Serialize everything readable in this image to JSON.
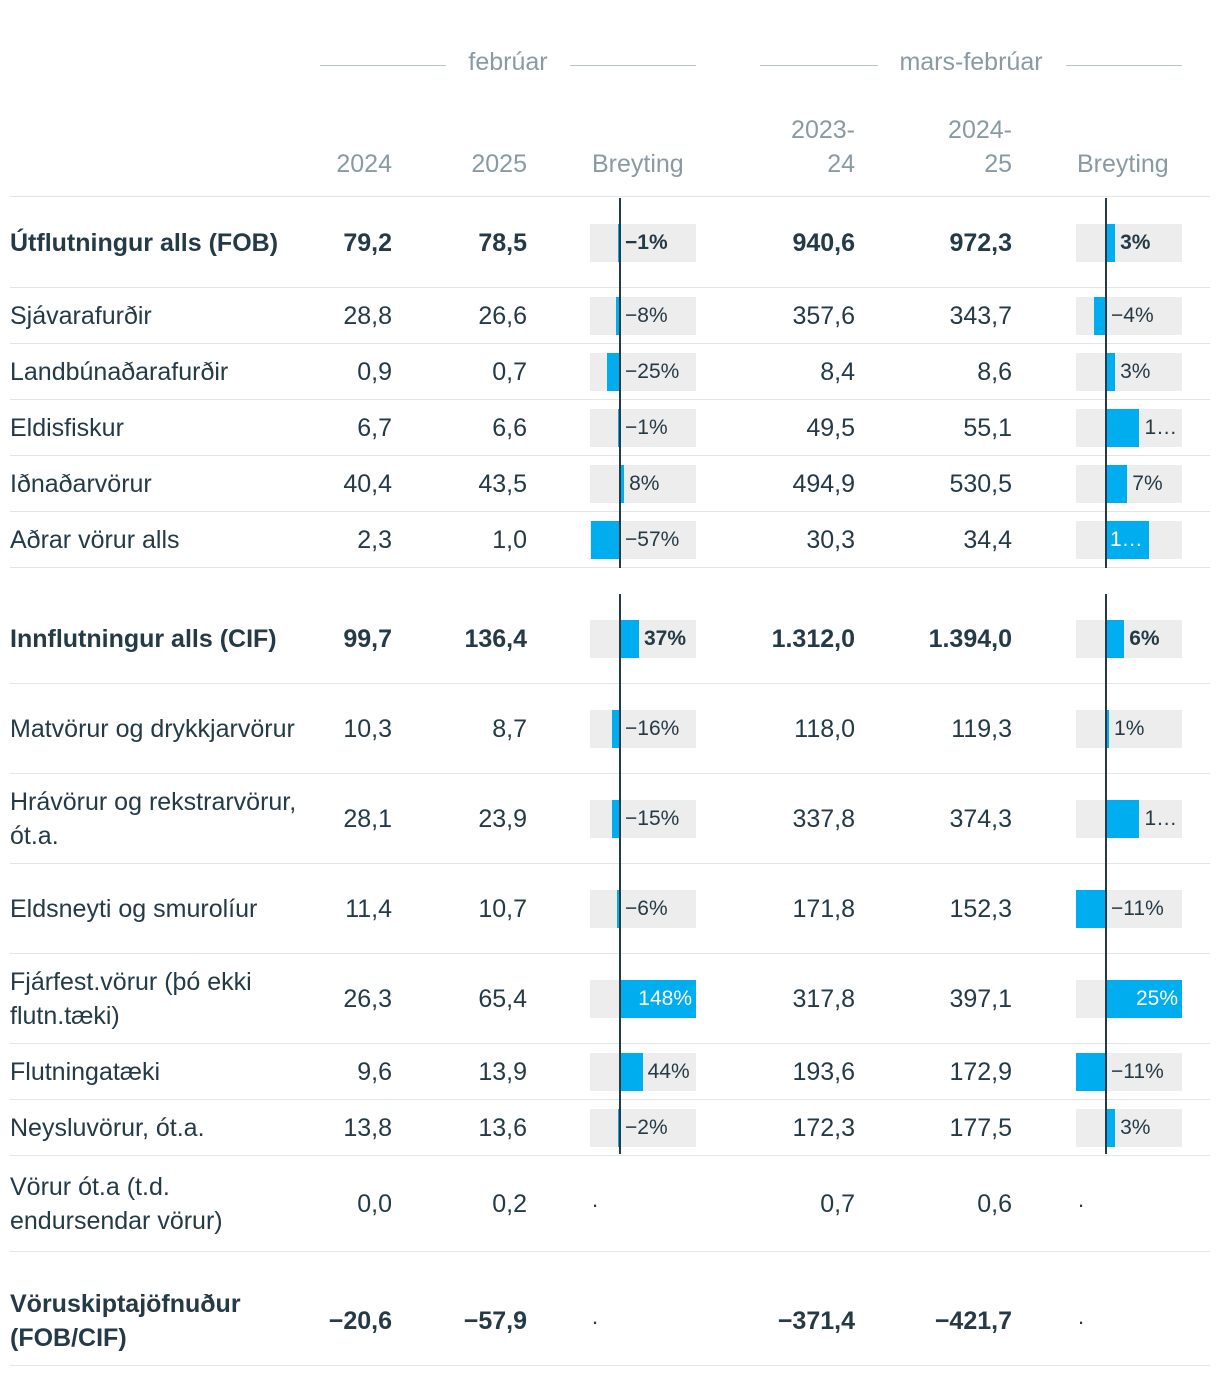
{
  "headers": {
    "group1": "febrúar",
    "group2": "mars-febrúar",
    "col_2024": "2024",
    "col_2025": "2025",
    "col_change1": "Breyting",
    "col_2023_24": "2023-\n24",
    "col_2024_25": "2024-\n25",
    "col_change2": "Breyting"
  },
  "colors": {
    "bar": "#00aeef",
    "track": "#ededed",
    "text": "#243a46",
    "muted": "#8a9aa2"
  },
  "chart_data": {
    "type": "table",
    "columns": [
      "",
      "2024",
      "2025",
      "Breyting",
      "2023-24",
      "2024-25",
      "Breyting"
    ],
    "rows": [
      {
        "label": "Útflutningur alls (FOB)",
        "bold": true,
        "v2024": "79,2",
        "v2025": "78,5",
        "ch1": -1,
        "ch1_text": "−1%",
        "v2324": "940,6",
        "v2425": "972,3",
        "ch2": 3,
        "ch2_text": "3%"
      },
      {
        "label": "Sjávarafurðir",
        "v2024": "28,8",
        "v2025": "26,6",
        "ch1": -8,
        "ch1_text": "−8%",
        "v2324": "357,6",
        "v2425": "343,7",
        "ch2": -4,
        "ch2_text": "−4%"
      },
      {
        "label": "Landbúnaðarafurðir",
        "v2024": "0,9",
        "v2025": "0,7",
        "ch1": -25,
        "ch1_text": "−25%",
        "v2324": "8,4",
        "v2425": "8,6",
        "ch2": 3,
        "ch2_text": "3%"
      },
      {
        "label": "Eldisfiskur",
        "v2024": "6,7",
        "v2025": "6,6",
        "ch1": -1,
        "ch1_text": "−1%",
        "v2324": "49,5",
        "v2425": "55,1",
        "ch2": 11,
        "ch2_text": "1…"
      },
      {
        "label": "Iðnaðarvörur",
        "v2024": "40,4",
        "v2025": "43,5",
        "ch1": 8,
        "ch1_text": "8%",
        "v2324": "494,9",
        "v2425": "530,5",
        "ch2": 7,
        "ch2_text": "7%"
      },
      {
        "label": "Aðrar vörur alls",
        "v2024": "2,3",
        "v2025": "1,0",
        "ch1": -57,
        "ch1_text": "−57%",
        "v2324": "30,3",
        "v2425": "34,4",
        "ch2": 14,
        "ch2_text": "1…",
        "ch2_inside": true
      },
      {
        "label": "Innflutningur alls (CIF)",
        "bold": true,
        "v2024": "99,7",
        "v2025": "136,4",
        "ch1": 37,
        "ch1_text": "37%",
        "v2324": "1.312,0",
        "v2425": "1.394,0",
        "ch2": 6,
        "ch2_text": "6%"
      },
      {
        "label": "Matvörur og drykkjarvörur",
        "v2024": "10,3",
        "v2025": "8,7",
        "ch1": -16,
        "ch1_text": "−16%",
        "v2324": "118,0",
        "v2425": "119,3",
        "ch2": 1,
        "ch2_text": "1%"
      },
      {
        "label": "Hrávörur og rekstrarvörur, ót.a.",
        "v2024": "28,1",
        "v2025": "23,9",
        "ch1": -15,
        "ch1_text": "−15%",
        "v2324": "337,8",
        "v2425": "374,3",
        "ch2": 11,
        "ch2_text": "1…"
      },
      {
        "label": "Eldsneyti og smurolíur",
        "v2024": "11,4",
        "v2025": "10,7",
        "ch1": -6,
        "ch1_text": "−6%",
        "v2324": "171,8",
        "v2425": "152,3",
        "ch2": -11,
        "ch2_text": "−11%"
      },
      {
        "label": "Fjárfest.vörur (þó ekki flutn.tæki)",
        "v2024": "26,3",
        "v2025": "65,4",
        "ch1": 148,
        "ch1_text": "148%",
        "ch1_inside": true,
        "v2324": "317,8",
        "v2425": "397,1",
        "ch2": 25,
        "ch2_text": "25%",
        "ch2_inside": true
      },
      {
        "label": "Flutningatæki",
        "v2024": "9,6",
        "v2025": "13,9",
        "ch1": 44,
        "ch1_text": "44%",
        "v2324": "193,6",
        "v2425": "172,9",
        "ch2": -11,
        "ch2_text": "−11%"
      },
      {
        "label": "Neysluvörur, ót.a.",
        "v2024": "13,8",
        "v2025": "13,6",
        "ch1": -2,
        "ch1_text": "−2%",
        "v2324": "172,3",
        "v2425": "177,5",
        "ch2": 3,
        "ch2_text": "3%"
      },
      {
        "label": "Vörur ót.a (t.d. endursendar vörur)",
        "v2024": "0,0",
        "v2025": "0,2",
        "ch1": null,
        "ch1_text": ".",
        "v2324": "0,7",
        "v2425": "0,6",
        "ch2": null,
        "ch2_text": "."
      },
      {
        "label": "Vöruskiptajöfnuður (FOB/CIF)",
        "bold": true,
        "v2024": "−20,6",
        "v2025": "−57,9",
        "ch1": null,
        "ch1_text": ".",
        "v2324": "−371,4",
        "v2425": "−421,7",
        "ch2": null,
        "ch2_text": "."
      }
    ]
  }
}
